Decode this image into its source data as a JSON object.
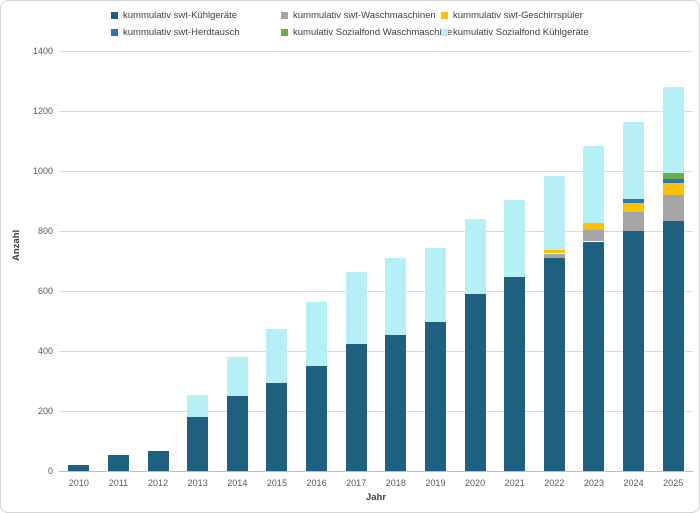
{
  "axes": {
    "y_title": "Anzahl",
    "x_title": "Jahr"
  },
  "chart_data": {
    "type": "bar",
    "stacked": true,
    "grid": true,
    "legend_position": "top",
    "xlabel": "Jahr",
    "ylabel": "Anzahl",
    "ylim": [
      0,
      1400
    ],
    "ytick_step": 200,
    "ytick_labels": [
      "0",
      "200",
      "400",
      "600",
      "800",
      "1000",
      "1200",
      "1400"
    ],
    "categories": [
      "2010",
      "2011",
      "2012",
      "2013",
      "2014",
      "2015",
      "2016",
      "2017",
      "2018",
      "2019",
      "2020",
      "2021",
      "2022",
      "2023",
      "2024",
      "2025"
    ],
    "series": [
      {
        "name": "kummulativ swt-Kühlgeräte",
        "color": "#1f5f7f",
        "values": [
          20,
          55,
          68,
          180,
          250,
          295,
          350,
          425,
          455,
          498,
          590,
          648,
          710,
          765,
          800,
          835
        ]
      },
      {
        "name": "kummulativ swt-Waschmaschinen",
        "color": "#a5a5a5",
        "values": [
          0,
          0,
          0,
          0,
          0,
          0,
          0,
          0,
          0,
          0,
          0,
          0,
          15,
          38,
          64,
          85
        ]
      },
      {
        "name": "kummulativ swt-Geschirrspüler",
        "color": "#ffc000",
        "values": [
          0,
          0,
          0,
          0,
          0,
          0,
          0,
          0,
          0,
          0,
          0,
          0,
          12,
          25,
          30,
          40
        ]
      },
      {
        "name": "kummulativ swt-Herdtausch",
        "color": "#2e75b6",
        "values": [
          0,
          0,
          0,
          0,
          0,
          0,
          0,
          0,
          0,
          0,
          0,
          0,
          0,
          0,
          12,
          12
        ]
      },
      {
        "name": "kumulativ Sozialfond Waschmaschine",
        "color": "#70ad47",
        "values": [
          0,
          0,
          0,
          0,
          0,
          0,
          0,
          0,
          0,
          0,
          0,
          0,
          0,
          0,
          0,
          23
        ]
      },
      {
        "name": "kumulativ Sozialfond Kühlgeräte",
        "color": "#b5f0f6",
        "values": [
          0,
          0,
          0,
          75,
          130,
          180,
          215,
          240,
          255,
          247,
          250,
          257,
          248,
          257,
          259,
          285
        ]
      }
    ]
  },
  "style_colors": {
    "gridline": "#d9d9d9",
    "zero_axis": "#bfbfbf",
    "tick_text": "#595959",
    "title_text": "#404040"
  },
  "layout_hints": {
    "legend_rows": 2,
    "legend_cols": 3
  }
}
